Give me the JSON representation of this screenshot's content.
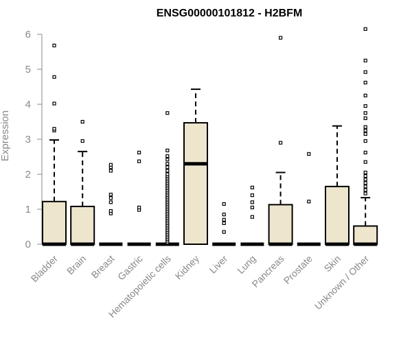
{
  "chart_data": {
    "type": "boxplot",
    "title": "ENSG00000101812 - H2BFM",
    "ylabel": "Expression",
    "xlabel": "",
    "ylim": [
      0,
      6.2
    ],
    "yticks": [
      0,
      1,
      2,
      3,
      4,
      5,
      6
    ],
    "colors": {
      "box_fill": "#ede6cc",
      "box_stroke": "#000000",
      "axis": "#888888"
    },
    "categories": [
      "Bladder",
      "Brain",
      "Breast",
      "Gastric",
      "Hematopoietic cells",
      "Kidney",
      "Liver",
      "Lung",
      "Pancreas",
      "Prostate",
      "Skin",
      "Unknown / Other"
    ],
    "boxes": [
      {
        "category": "Bladder",
        "q1": 0,
        "median": 0,
        "q3": 1.22,
        "whisker_low": 0,
        "whisker_high": 2.98,
        "outliers": [
          3.25,
          3.3,
          4.02,
          4.78,
          5.68
        ]
      },
      {
        "category": "Brain",
        "q1": 0,
        "median": 0,
        "q3": 1.08,
        "whisker_low": 0,
        "whisker_high": 2.65,
        "outliers": [
          2.95,
          3.5
        ]
      },
      {
        "category": "Breast",
        "q1": 0,
        "median": 0,
        "q3": 0,
        "whisker_low": 0,
        "whisker_high": 0,
        "outliers": [
          0.88,
          0.95,
          1.2,
          1.32,
          1.42,
          2.1,
          2.2,
          2.27
        ]
      },
      {
        "category": "Gastric",
        "q1": 0,
        "median": 0,
        "q3": 0,
        "whisker_low": 0,
        "whisker_high": 0,
        "outliers": [
          0.98,
          1.05,
          2.37,
          2.62
        ]
      },
      {
        "category": "Hematopoietic cells",
        "q1": 0,
        "median": 0,
        "q3": 0,
        "whisker_low": 0,
        "whisker_high": 0,
        "outliers": [
          0.05,
          0.1,
          0.15,
          0.2,
          0.25,
          0.3,
          0.35,
          0.4,
          0.45,
          0.5,
          0.55,
          0.6,
          0.65,
          0.7,
          0.75,
          0.8,
          0.85,
          0.9,
          0.95,
          1.0,
          1.05,
          1.1,
          1.15,
          1.2,
          1.25,
          1.3,
          1.35,
          1.4,
          1.45,
          1.5,
          1.55,
          1.6,
          1.65,
          1.7,
          1.75,
          1.8,
          1.85,
          1.9,
          1.95,
          2.0,
          2.1,
          2.2,
          2.3,
          2.42,
          2.52,
          2.68,
          3.75
        ]
      },
      {
        "category": "Kidney",
        "q1": 0,
        "median": 2.3,
        "q3": 3.47,
        "whisker_low": 0,
        "whisker_high": 4.43,
        "outliers": []
      },
      {
        "category": "Liver",
        "q1": 0,
        "median": 0,
        "q3": 0,
        "whisker_low": 0,
        "whisker_high": 0,
        "outliers": [
          0.35,
          0.6,
          0.7,
          0.85,
          1.15
        ]
      },
      {
        "category": "Lung",
        "q1": 0,
        "median": 0,
        "q3": 0,
        "whisker_low": 0,
        "whisker_high": 0,
        "outliers": [
          0.78,
          1.05,
          1.2,
          1.4,
          1.62
        ]
      },
      {
        "category": "Pancreas",
        "q1": 0,
        "median": 0,
        "q3": 1.13,
        "whisker_low": 0,
        "whisker_high": 2.05,
        "outliers": [
          2.9,
          5.9
        ]
      },
      {
        "category": "Prostate",
        "q1": 0,
        "median": 0,
        "q3": 0,
        "whisker_low": 0,
        "whisker_high": 0,
        "outliers": [
          1.22,
          2.58
        ]
      },
      {
        "category": "Skin",
        "q1": 0,
        "median": 0,
        "q3": 1.65,
        "whisker_low": 0,
        "whisker_high": 3.38,
        "outliers": []
      },
      {
        "category": "Unknown / Other",
        "q1": 0,
        "median": 0,
        "q3": 0.52,
        "whisker_low": 0,
        "whisker_high": 1.33,
        "outliers": [
          1.45,
          1.55,
          1.65,
          1.75,
          1.85,
          1.95,
          2.05,
          2.35,
          2.62,
          2.95,
          3.15,
          3.25,
          3.35,
          3.6,
          3.75,
          3.95,
          4.25,
          4.62,
          4.92,
          5.25,
          6.15
        ]
      }
    ]
  }
}
